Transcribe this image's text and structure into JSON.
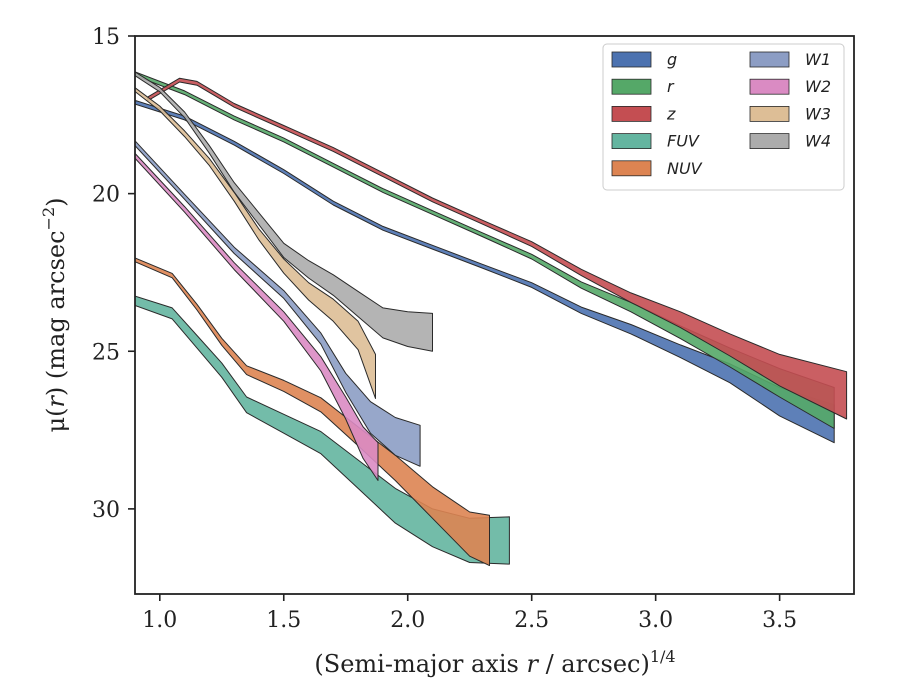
{
  "chart_data": {
    "type": "area",
    "xlabel_main": "(Semi-major axis ",
    "xlabel_var": "r",
    "xlabel_unit": " / arcsec)",
    "xlabel_exp": "1/4",
    "ylabel_main": "μ(",
    "ylabel_var": "r",
    "ylabel_unit": ") (mag arcsec",
    "ylabel_exp": "−2",
    "ylabel_close": ")",
    "xlim": [
      0.9,
      3.8
    ],
    "ylim": [
      32.7,
      15.0
    ],
    "y_inverted": true,
    "xticks": [
      1.0,
      1.5,
      2.0,
      2.5,
      3.0,
      3.5
    ],
    "xtick_labels": [
      "1.0",
      "1.5",
      "2.0",
      "2.5",
      "3.0",
      "3.5"
    ],
    "yticks": [
      15,
      20,
      25,
      30
    ],
    "ytick_labels": [
      "15",
      "20",
      "25",
      "30"
    ],
    "legend_position": "top-right",
    "legend_columns": 2,
    "series": [
      {
        "name": "g",
        "color": "#4C72B0",
        "x": [
          0.9,
          1.1,
          1.3,
          1.5,
          1.7,
          1.9,
          2.1,
          2.3,
          2.5,
          2.7,
          2.9,
          3.1,
          3.3,
          3.5,
          3.72
        ],
        "y": [
          17.1,
          17.6,
          18.4,
          19.3,
          20.3,
          21.1,
          21.7,
          22.3,
          22.9,
          23.7,
          24.3,
          25.0,
          25.7,
          26.6,
          27.3
        ],
        "width": [
          0.12,
          0.12,
          0.12,
          0.12,
          0.12,
          0.12,
          0.12,
          0.12,
          0.15,
          0.2,
          0.3,
          0.4,
          0.6,
          0.9,
          1.2
        ]
      },
      {
        "name": "r",
        "color": "#55A868",
        "x": [
          0.9,
          1.1,
          1.3,
          1.5,
          1.7,
          1.9,
          2.1,
          2.3,
          2.5,
          2.7,
          2.9,
          3.1,
          3.3,
          3.5,
          3.72
        ],
        "y": [
          16.2,
          16.8,
          17.6,
          18.3,
          19.1,
          19.9,
          20.6,
          21.3,
          22.0,
          22.9,
          23.6,
          24.4,
          25.2,
          26.0,
          26.8
        ],
        "width": [
          0.12,
          0.12,
          0.12,
          0.12,
          0.12,
          0.12,
          0.12,
          0.12,
          0.15,
          0.2,
          0.3,
          0.4,
          0.6,
          0.9,
          1.3
        ]
      },
      {
        "name": "z",
        "color": "#C44E52",
        "x": [
          0.95,
          1.08,
          1.15,
          1.3,
          1.5,
          1.7,
          1.9,
          2.1,
          2.3,
          2.5,
          2.7,
          2.9,
          3.1,
          3.3,
          3.5,
          3.77
        ],
        "y": [
          17.0,
          16.4,
          16.5,
          17.2,
          17.9,
          18.6,
          19.4,
          20.2,
          20.9,
          21.6,
          22.5,
          23.3,
          24.0,
          24.8,
          25.6,
          26.4
        ],
        "width": [
          0.12,
          0.12,
          0.12,
          0.12,
          0.12,
          0.12,
          0.12,
          0.12,
          0.12,
          0.15,
          0.2,
          0.3,
          0.5,
          0.7,
          1.0,
          1.5
        ]
      },
      {
        "name": "FUV",
        "color": "#64B5A0",
        "x": [
          0.9,
          1.05,
          1.15,
          1.25,
          1.35,
          1.5,
          1.65,
          1.8,
          1.95,
          2.1,
          2.25,
          2.41
        ],
        "y": [
          23.4,
          23.8,
          24.7,
          25.6,
          26.7,
          27.3,
          27.9,
          28.9,
          29.9,
          30.6,
          31.0,
          31.0
        ],
        "width": [
          0.3,
          0.35,
          0.4,
          0.45,
          0.5,
          0.6,
          0.7,
          0.9,
          1.1,
          1.2,
          1.4,
          1.5
        ]
      },
      {
        "name": "NUV",
        "color": "#DD8452",
        "x": [
          0.9,
          1.05,
          1.15,
          1.25,
          1.35,
          1.5,
          1.65,
          1.8,
          1.95,
          2.1,
          2.25,
          2.33
        ],
        "y": [
          22.1,
          22.6,
          23.6,
          24.7,
          25.6,
          26.1,
          26.7,
          27.7,
          28.7,
          29.8,
          30.8,
          31.0
        ],
        "width": [
          0.12,
          0.14,
          0.18,
          0.22,
          0.28,
          0.35,
          0.45,
          0.6,
          0.8,
          1.0,
          1.4,
          1.6
        ]
      },
      {
        "name": "W1",
        "color": "#8C9DC4",
        "x": [
          0.9,
          1.1,
          1.3,
          1.5,
          1.65,
          1.75,
          1.85,
          1.95,
          2.05
        ],
        "y": [
          18.4,
          20.1,
          21.8,
          23.2,
          24.6,
          26.0,
          27.1,
          27.7,
          28.0
        ],
        "width": [
          0.15,
          0.16,
          0.2,
          0.25,
          0.35,
          0.6,
          1.0,
          1.2,
          1.3
        ]
      },
      {
        "name": "W2",
        "color": "#DA8BC3",
        "x": [
          0.9,
          1.1,
          1.3,
          1.5,
          1.65,
          1.75,
          1.82,
          1.88
        ],
        "y": [
          18.8,
          20.5,
          22.3,
          23.9,
          25.4,
          26.8,
          27.9,
          28.5
        ],
        "width": [
          0.15,
          0.18,
          0.22,
          0.3,
          0.45,
          0.7,
          1.0,
          1.2
        ]
      },
      {
        "name": "W3",
        "color": "#DDBE96",
        "x": [
          0.9,
          1.0,
          1.1,
          1.2,
          1.3,
          1.4,
          1.5,
          1.6,
          1.7,
          1.8,
          1.87
        ],
        "y": [
          16.7,
          17.3,
          18.1,
          19.0,
          20.1,
          21.3,
          22.3,
          23.1,
          23.7,
          24.5,
          25.8
        ],
        "width": [
          0.12,
          0.15,
          0.18,
          0.22,
          0.28,
          0.35,
          0.45,
          0.55,
          0.7,
          0.9,
          1.4
        ]
      },
      {
        "name": "W4",
        "color": "#ACACAC",
        "x": [
          0.9,
          1.0,
          1.1,
          1.2,
          1.3,
          1.4,
          1.5,
          1.6,
          1.7,
          1.8,
          1.9,
          2.0,
          2.1
        ],
        "y": [
          16.2,
          16.7,
          17.5,
          18.6,
          19.8,
          20.8,
          21.8,
          22.4,
          22.9,
          23.5,
          24.1,
          24.3,
          24.4
        ],
        "width": [
          0.12,
          0.14,
          0.18,
          0.24,
          0.3,
          0.38,
          0.45,
          0.55,
          0.65,
          0.8,
          0.95,
          1.1,
          1.2
        ]
      }
    ]
  }
}
